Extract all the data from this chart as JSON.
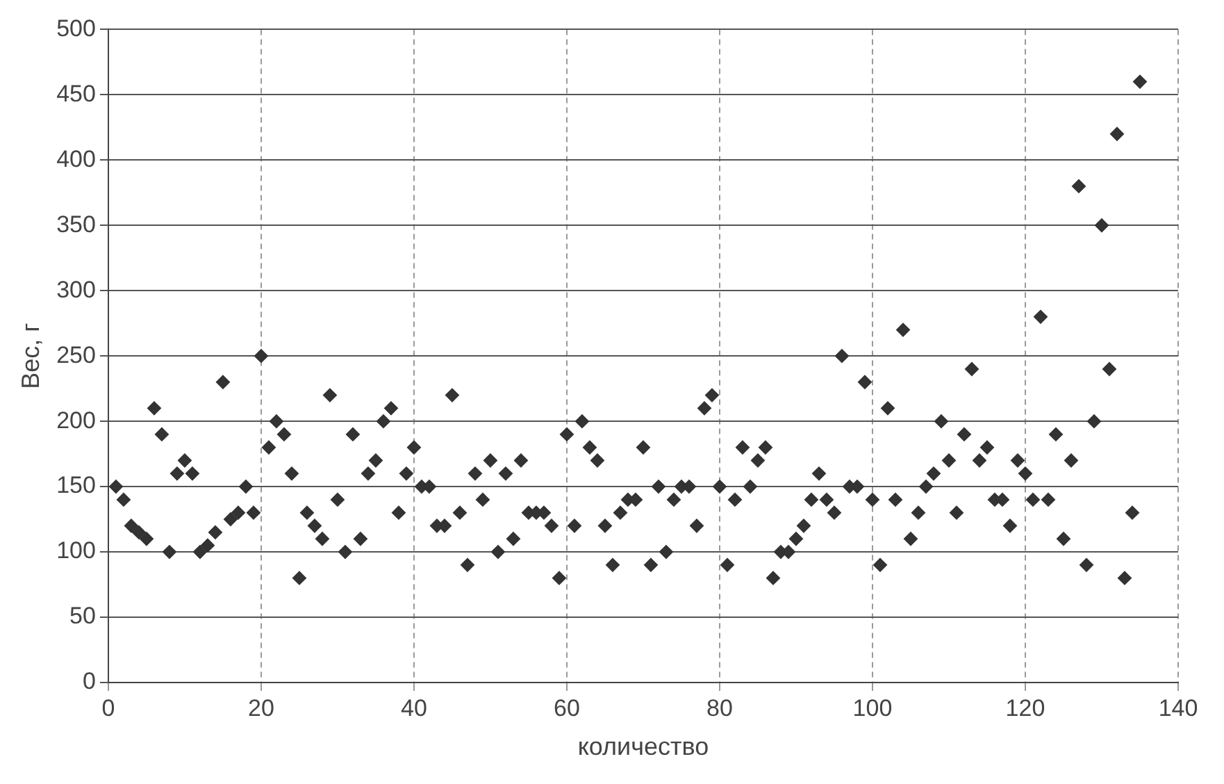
{
  "chart_data": {
    "type": "scatter",
    "xlabel": "количество",
    "ylabel": "Вес, г",
    "xlim": [
      0,
      140
    ],
    "xticks": [
      0,
      20,
      40,
      60,
      80,
      100,
      120,
      140
    ],
    "ylim": [
      0,
      500
    ],
    "yticks": [
      0,
      50,
      100,
      150,
      200,
      250,
      300,
      350,
      400,
      450,
      500
    ],
    "grid": true,
    "legend": false,
    "marker": "diamond",
    "series": [
      {
        "color": "#333333",
        "x": [
          1,
          2,
          3,
          4,
          5,
          6,
          7,
          8,
          9,
          10,
          11,
          12,
          13,
          14,
          15,
          16,
          17,
          18,
          19,
          20,
          21,
          22,
          23,
          24,
          25,
          26,
          27,
          28,
          29,
          30,
          31,
          32,
          33,
          34,
          35,
          36,
          37,
          38,
          39,
          40,
          41,
          42,
          43,
          44,
          45,
          46,
          47,
          48,
          49,
          50,
          51,
          52,
          53,
          54,
          55,
          56,
          57,
          58,
          59,
          60,
          61,
          62,
          63,
          64,
          65,
          66,
          67,
          68,
          69,
          70,
          71,
          72,
          73,
          74,
          75,
          76,
          77,
          78,
          79,
          80,
          81,
          82,
          83,
          84,
          85,
          86,
          87,
          88,
          89,
          90,
          91,
          92,
          93,
          94,
          95,
          96,
          97,
          98,
          99,
          100,
          101,
          102,
          103,
          104,
          105,
          106,
          107,
          108,
          109,
          110,
          111,
          112,
          113,
          114,
          115,
          116,
          117,
          118,
          119,
          120,
          121,
          122,
          123,
          124,
          125,
          126,
          127,
          128,
          129,
          130,
          131,
          132,
          133,
          134,
          135
        ],
        "values": [
          150,
          140,
          120,
          115,
          110,
          210,
          190,
          100,
          160,
          170,
          160,
          100,
          105,
          115,
          230,
          125,
          130,
          150,
          130,
          250,
          180,
          200,
          190,
          160,
          80,
          130,
          120,
          110,
          220,
          140,
          100,
          190,
          110,
          160,
          170,
          200,
          210,
          130,
          160,
          180,
          150,
          150,
          120,
          120,
          220,
          130,
          90,
          160,
          140,
          170,
          100,
          160,
          110,
          170,
          130,
          130,
          130,
          120,
          80,
          190,
          120,
          200,
          180,
          170,
          120,
          90,
          130,
          140,
          140,
          180,
          90,
          150,
          100,
          140,
          150,
          150,
          120,
          210,
          220,
          150,
          90,
          140,
          180,
          150,
          170,
          180,
          80,
          100,
          100,
          110,
          120,
          140,
          160,
          140,
          130,
          250,
          150,
          150,
          230,
          140,
          90,
          210,
          140,
          270,
          110,
          130,
          150,
          160,
          200,
          170,
          130,
          190,
          240,
          170,
          180,
          140,
          140,
          120,
          170,
          160,
          140,
          280,
          140,
          190,
          110,
          170,
          380,
          90,
          200,
          350,
          240,
          420,
          80,
          130,
          460
        ]
      }
    ]
  }
}
